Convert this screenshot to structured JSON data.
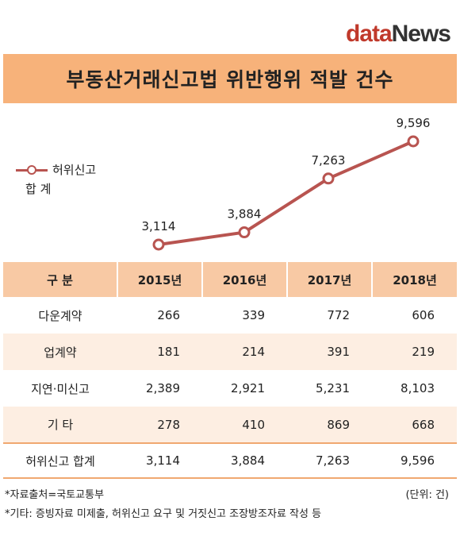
{
  "logo": {
    "part1": "data",
    "part2": "News"
  },
  "title": "부동산거래신고법 위반행위 적발 건수",
  "legend": {
    "line1": "허위신고",
    "line2": "합 계"
  },
  "chart_data": {
    "type": "line",
    "x": [
      "2015년",
      "2016년",
      "2017년",
      "2018년"
    ],
    "series": [
      {
        "name": "허위신고 합 계",
        "values": [
          3114,
          3884,
          7263,
          9596
        ],
        "labels": [
          "3,114",
          "3,884",
          "7,263",
          "9,596"
        ]
      }
    ],
    "color": "#b85450"
  },
  "table": {
    "header": [
      "구 분",
      "2015년",
      "2016년",
      "2017년",
      "2018년"
    ],
    "rows": [
      {
        "label": "다운계약",
        "values": [
          "266",
          "339",
          "772",
          "606"
        ]
      },
      {
        "label": "업계약",
        "values": [
          "181",
          "214",
          "391",
          "219"
        ]
      },
      {
        "label": "지연·미신고",
        "values": [
          "2,389",
          "2,921",
          "5,231",
          "8,103"
        ]
      },
      {
        "label": "기 타",
        "values": [
          "278",
          "410",
          "869",
          "668"
        ]
      },
      {
        "label": "허위신고 합계",
        "values": [
          "3,114",
          "3,884",
          "7,263",
          "9,596"
        ]
      }
    ]
  },
  "footnotes": {
    "source": "*자료출처=국토교통부",
    "unit": "(단위: 건)",
    "note": "*기타: 증빙자료 미제출, 허위신고 요구 및 거짓신고 조장방조자료 작성 등"
  }
}
